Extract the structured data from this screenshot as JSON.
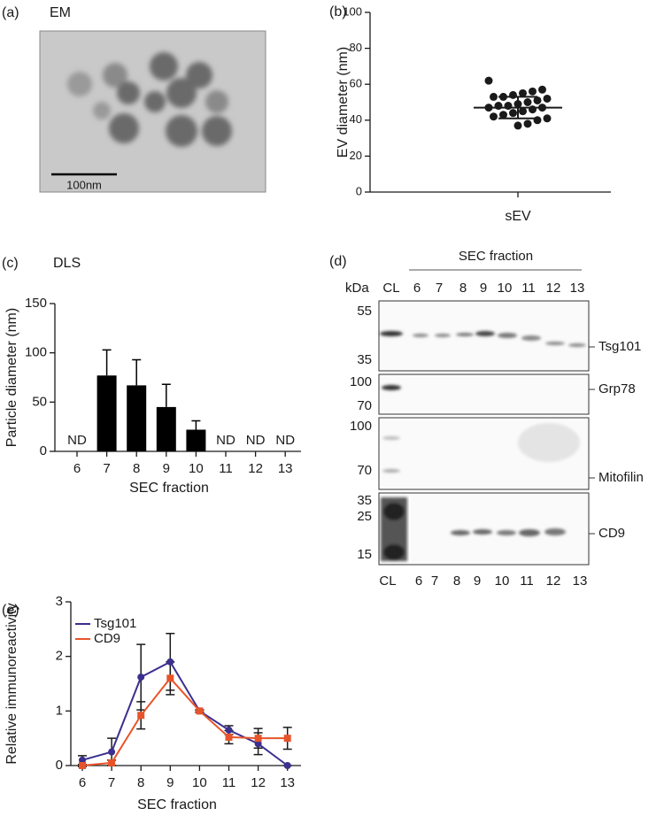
{
  "chart_data": [
    {
      "type": "scatter",
      "panel_label": "(b)",
      "ylabel": "EV diameter (nm)",
      "categories": [
        "sEV"
      ],
      "values": [
        62,
        57,
        56,
        55,
        54,
        53,
        53,
        52,
        51,
        50,
        49,
        48,
        48,
        47,
        47,
        46,
        45,
        44,
        43,
        42,
        41,
        40,
        38,
        37
      ],
      "mean": 47,
      "sd": 6,
      "color": "#1a1a1a",
      "ylim": [
        0,
        100
      ],
      "yticks": [
        0,
        20,
        40,
        60,
        80,
        100
      ]
    },
    {
      "type": "bar",
      "panel_label": "(c)",
      "title": "DLS",
      "ylabel": "Particle diameter (nm)",
      "xlabel": "SEC fraction",
      "categories": [
        "6",
        "7",
        "8",
        "9",
        "10",
        "11",
        "12",
        "13"
      ],
      "values": [
        null,
        77,
        67,
        45,
        22,
        null,
        null,
        null
      ],
      "errors": [
        null,
        26,
        26,
        23,
        9,
        null,
        null,
        null
      ],
      "value_labels": [
        "ND",
        null,
        null,
        null,
        null,
        "ND",
        "ND",
        "ND"
      ],
      "color": "#000000",
      "ylim": [
        0,
        150
      ],
      "yticks": [
        0,
        50,
        100,
        150
      ]
    },
    {
      "type": "line",
      "panel_label": "(e)",
      "ylabel": "Relative immunoreactivity",
      "xlabel": "SEC fraction",
      "categories": [
        "6",
        "7",
        "8",
        "9",
        "10",
        "11",
        "12",
        "13"
      ],
      "series": [
        {
          "name": "Tsg101",
          "color": "#3b2f8f",
          "marker": "circle",
          "values": [
            0.1,
            0.25,
            1.62,
            1.9,
            1.0,
            0.65,
            0.4,
            0.0
          ],
          "errors": [
            0.08,
            0.25,
            0.6,
            0.52,
            0.02,
            0.08,
            0.2,
            0.0
          ]
        },
        {
          "name": "CD9",
          "color": "#e8542a",
          "marker": "square",
          "values": [
            0.0,
            0.05,
            0.92,
            1.6,
            1.0,
            0.52,
            0.5,
            0.5
          ],
          "errors": [
            0.02,
            0.05,
            0.25,
            0.3,
            0.02,
            0.12,
            0.18,
            0.2
          ]
        }
      ],
      "ylim": [
        0,
        3
      ],
      "yticks": [
        0,
        1,
        2,
        3
      ]
    }
  ],
  "em_panel": {
    "panel_label": "(a)",
    "title": "EM",
    "scale_bar": "100nm"
  },
  "blot_panel": {
    "panel_label": "(d)",
    "header": "SEC fraction",
    "unit": "kDa",
    "lanes": [
      "CL",
      "6",
      "7",
      "8",
      "9",
      "10",
      "11",
      "12",
      "13"
    ],
    "markers": [
      "55",
      "35",
      "100",
      "70",
      "100",
      "70",
      "35",
      "25",
      "15"
    ],
    "proteins": [
      "Tsg101",
      "Grp78",
      "Mitofilin",
      "CD9"
    ],
    "bottom_lanes": [
      "CL",
      "6",
      "7",
      "8",
      "9",
      "10",
      "11",
      "12",
      "13"
    ]
  }
}
